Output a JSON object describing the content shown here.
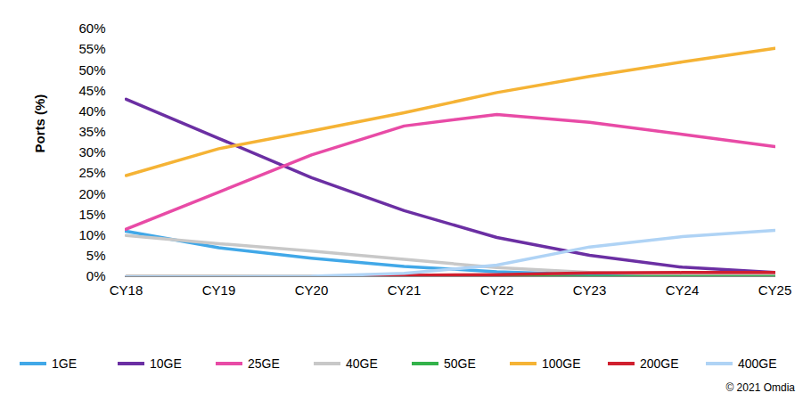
{
  "chart_data": {
    "type": "line",
    "y_label": "Ports (%)",
    "annotation": "© 2021 Omdia",
    "categories": [
      "CY18",
      "CY19",
      "CY20",
      "CY21",
      "CY22",
      "CY23",
      "CY24",
      "CY25"
    ],
    "series": [
      {
        "name": "1GE",
        "color": "#41A8E8",
        "values": [
          11,
          7,
          4.5,
          2.5,
          1.2,
          0.5,
          0.3,
          0.2
        ]
      },
      {
        "name": "10GE",
        "color": "#6B2FA3",
        "values": [
          43,
          33.5,
          24,
          16,
          9.5,
          5.2,
          2.3,
          1
        ]
      },
      {
        "name": "25GE",
        "color": "#E84BA6",
        "values": [
          11.5,
          20.5,
          29.5,
          36.5,
          39.3,
          37.4,
          34.5,
          31.5
        ]
      },
      {
        "name": "40GE",
        "color": "#C8C8C8",
        "values": [
          10,
          8,
          6.2,
          4.2,
          2.2,
          1,
          0.5,
          0.3
        ]
      },
      {
        "name": "50GE",
        "color": "#33B24A",
        "values": [
          0,
          0,
          0,
          0,
          0,
          0,
          0,
          0
        ]
      },
      {
        "name": "100GE",
        "color": "#F5B335",
        "values": [
          24.5,
          31,
          35.3,
          39.7,
          44.6,
          48.5,
          52,
          55.3
        ]
      },
      {
        "name": "200GE",
        "color": "#D0202F",
        "values": [
          0,
          0,
          0,
          0.3,
          0.5,
          0.9,
          1,
          1
        ]
      },
      {
        "name": "400GE",
        "color": "#AFD3F5",
        "values": [
          0,
          0,
          0.1,
          0.8,
          2.8,
          7.2,
          9.7,
          11.2
        ]
      }
    ],
    "ylim": [
      0,
      60
    ],
    "yticks": [
      {
        "value": 0,
        "label": "0%"
      },
      {
        "value": 5,
        "label": "5%"
      },
      {
        "value": 10,
        "label": "10%"
      },
      {
        "value": 15,
        "label": "15%"
      },
      {
        "value": 20,
        "label": "20%"
      },
      {
        "value": 25,
        "label": "25%"
      },
      {
        "value": 30,
        "label": "30%"
      },
      {
        "value": 35,
        "label": "35%"
      },
      {
        "value": 40,
        "label": "40%"
      },
      {
        "value": 45,
        "label": "45%"
      },
      {
        "value": 50,
        "label": "50%"
      },
      {
        "value": 55,
        "label": "55%"
      },
      {
        "value": 60,
        "label": "60%"
      }
    ],
    "grid": false,
    "legend": "bottom"
  }
}
